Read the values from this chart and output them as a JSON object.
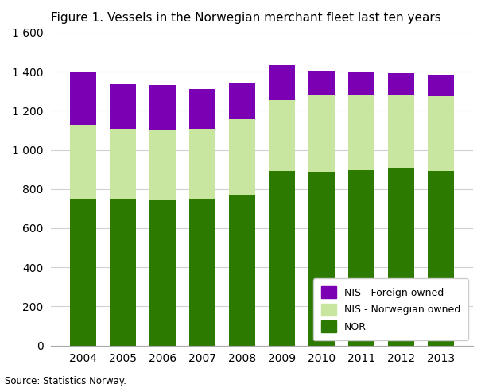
{
  "title": "Figure 1. Vessels in the Norwegian merchant fleet last ten years",
  "years": [
    2004,
    2005,
    2006,
    2007,
    2008,
    2009,
    2010,
    2011,
    2012,
    2013
  ],
  "NOR": [
    750,
    752,
    742,
    752,
    770,
    893,
    889,
    896,
    908,
    893
  ],
  "NIS_Norwegian": [
    378,
    355,
    360,
    355,
    385,
    362,
    388,
    382,
    372,
    382
  ],
  "NIS_Foreign": [
    272,
    228,
    228,
    205,
    185,
    178,
    128,
    120,
    112,
    110
  ],
  "colors": {
    "NOR": "#2d7a00",
    "NIS_Norwegian": "#c8e6a0",
    "NIS_Foreign": "#7b00b4"
  },
  "ylim": [
    0,
    1600
  ],
  "yticks": [
    0,
    200,
    400,
    600,
    800,
    1000,
    1200,
    1400,
    1600
  ],
  "ytick_labels": [
    "0",
    "200",
    "400",
    "600",
    "800",
    "1 000",
    "1 200",
    "1 400",
    "1 600"
  ],
  "source": "Source: Statistics Norway.",
  "background_color": "#ffffff",
  "grid_color": "#d0d0d0",
  "bar_width": 0.65
}
